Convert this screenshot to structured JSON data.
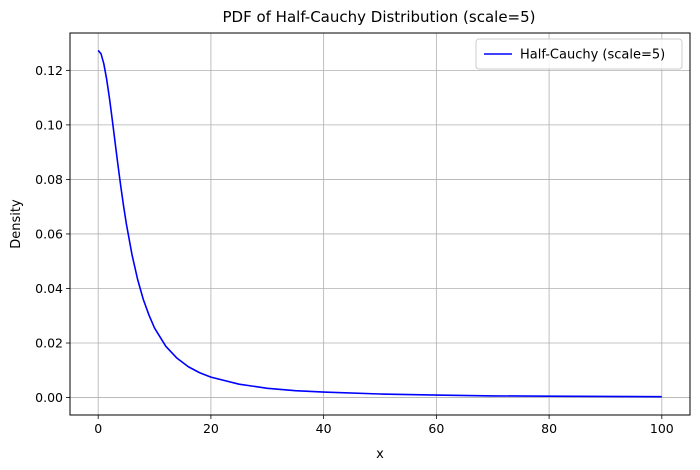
{
  "chart_data": {
    "type": "line",
    "title": "PDF of Half-Cauchy Distribution (scale=5)",
    "xlabel": "x",
    "ylabel": "Density",
    "xlim": [
      -5,
      105
    ],
    "ylim": [
      -0.0064,
      0.1337
    ],
    "xticks": [
      0,
      20,
      40,
      60,
      80,
      100
    ],
    "yticks": [
      0.0,
      0.02,
      0.04,
      0.06,
      0.08,
      0.1,
      0.12
    ],
    "xtick_labels": [
      "0",
      "20",
      "40",
      "60",
      "80",
      "100"
    ],
    "ytick_labels": [
      "0.00",
      "0.02",
      "0.04",
      "0.06",
      "0.08",
      "0.10",
      "0.12"
    ],
    "grid": true,
    "legend_position": "top-right",
    "series": [
      {
        "name": "Half-Cauchy (scale=5)",
        "color": "#0000ff",
        "x": [
          0,
          0.5,
          1,
          1.5,
          2,
          2.5,
          3,
          3.5,
          4,
          4.5,
          5,
          6,
          7,
          8,
          9,
          10,
          12,
          14,
          16,
          18,
          20,
          25,
          30,
          35,
          40,
          50,
          60,
          70,
          80,
          90,
          100
        ],
        "y": [
          0.1273,
          0.1261,
          0.1224,
          0.1168,
          0.1098,
          0.1019,
          0.0936,
          0.0854,
          0.0776,
          0.0703,
          0.0637,
          0.0524,
          0.0433,
          0.036,
          0.0303,
          0.0255,
          0.0188,
          0.0144,
          0.0113,
          0.0091,
          0.0075,
          0.0049,
          0.0034,
          0.0025,
          0.002,
          0.0013,
          0.0009,
          0.0006,
          0.0005,
          0.0004,
          0.0003
        ]
      }
    ]
  }
}
